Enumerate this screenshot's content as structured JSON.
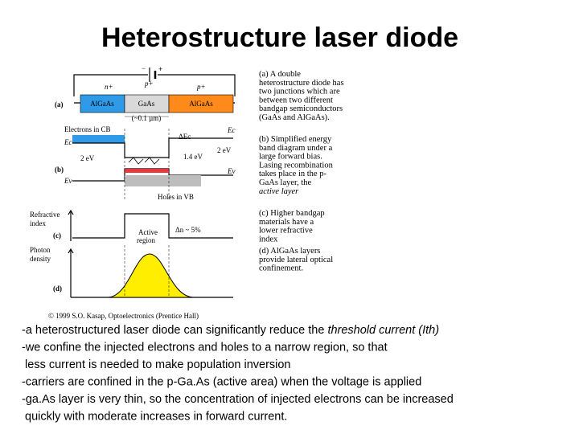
{
  "title": "Heterostructure laser diode",
  "figure": {
    "battery_minus": "−",
    "battery_plus": "+",
    "n_plus": "n+",
    "p_plus_1": "p+",
    "p_plus_2": "p+",
    "panel_a": "(a)",
    "layer_1": "AlGaAs",
    "layer_2": "GaAs",
    "layer_3": "AlGaAs",
    "thickness": "(~0.1 µm)",
    "electrons": "Electrons in CB",
    "ec_left": "Ec",
    "gap_left": "2 eV",
    "panel_b": "(b)",
    "ev_left": "Ev",
    "delta_ec": "ΔEc",
    "ec_right": "Ec",
    "gap_right": "2 eV",
    "gap_middle": "1.4 eV",
    "ev_right": "Ev",
    "holes": "Holes in VB",
    "refractive_1": "Refractive",
    "refractive_2": "index",
    "panel_c": "(c)",
    "active_1": "Active",
    "active_2": "region",
    "delta_n": "Δn ~ 5%",
    "photon_1": "Photon",
    "photon_2": "density",
    "panel_d": "(d)",
    "copyright": "© 1999 S.O. Kasap, Optoelectronics (Prentice Hall)"
  },
  "captions": [
    {
      "lines": [
        "(a) A double",
        "heterostructure diode has",
        "two junctions which are",
        "between two different",
        "bandgap semiconductors",
        "(GaAs and AlGaAs)."
      ]
    },
    {
      "lines": [
        "(b) Simplified energy",
        "band diagram under a",
        "large forward bias.",
        "Lasing recombination",
        "takes place in the p-",
        "GaAs layer, the"
      ],
      "emphasis": "active layer"
    },
    {
      "lines": [
        "(c) Higher bandgap",
        "materials have a",
        "lower refractive",
        "index"
      ]
    },
    {
      "lines": [
        "(d) AlGaAs layers",
        "provide lateral optical",
        "confinement."
      ]
    }
  ],
  "body": [
    {
      "text": "-a heterostructured laser diode can significantly reduce the ",
      "emphasis": "threshold current (Ith)"
    },
    "-we confine the injected electrons and holes to a narrow region, so that",
    " less current is needed to make population inversion",
    "-carriers are confined in the p-Ga.As (active area) when the voltage is applied",
    "-ga.As layer is very thin, so the concentration of injected electrons can be increased",
    " quickly with moderate increases in forward current."
  ]
}
